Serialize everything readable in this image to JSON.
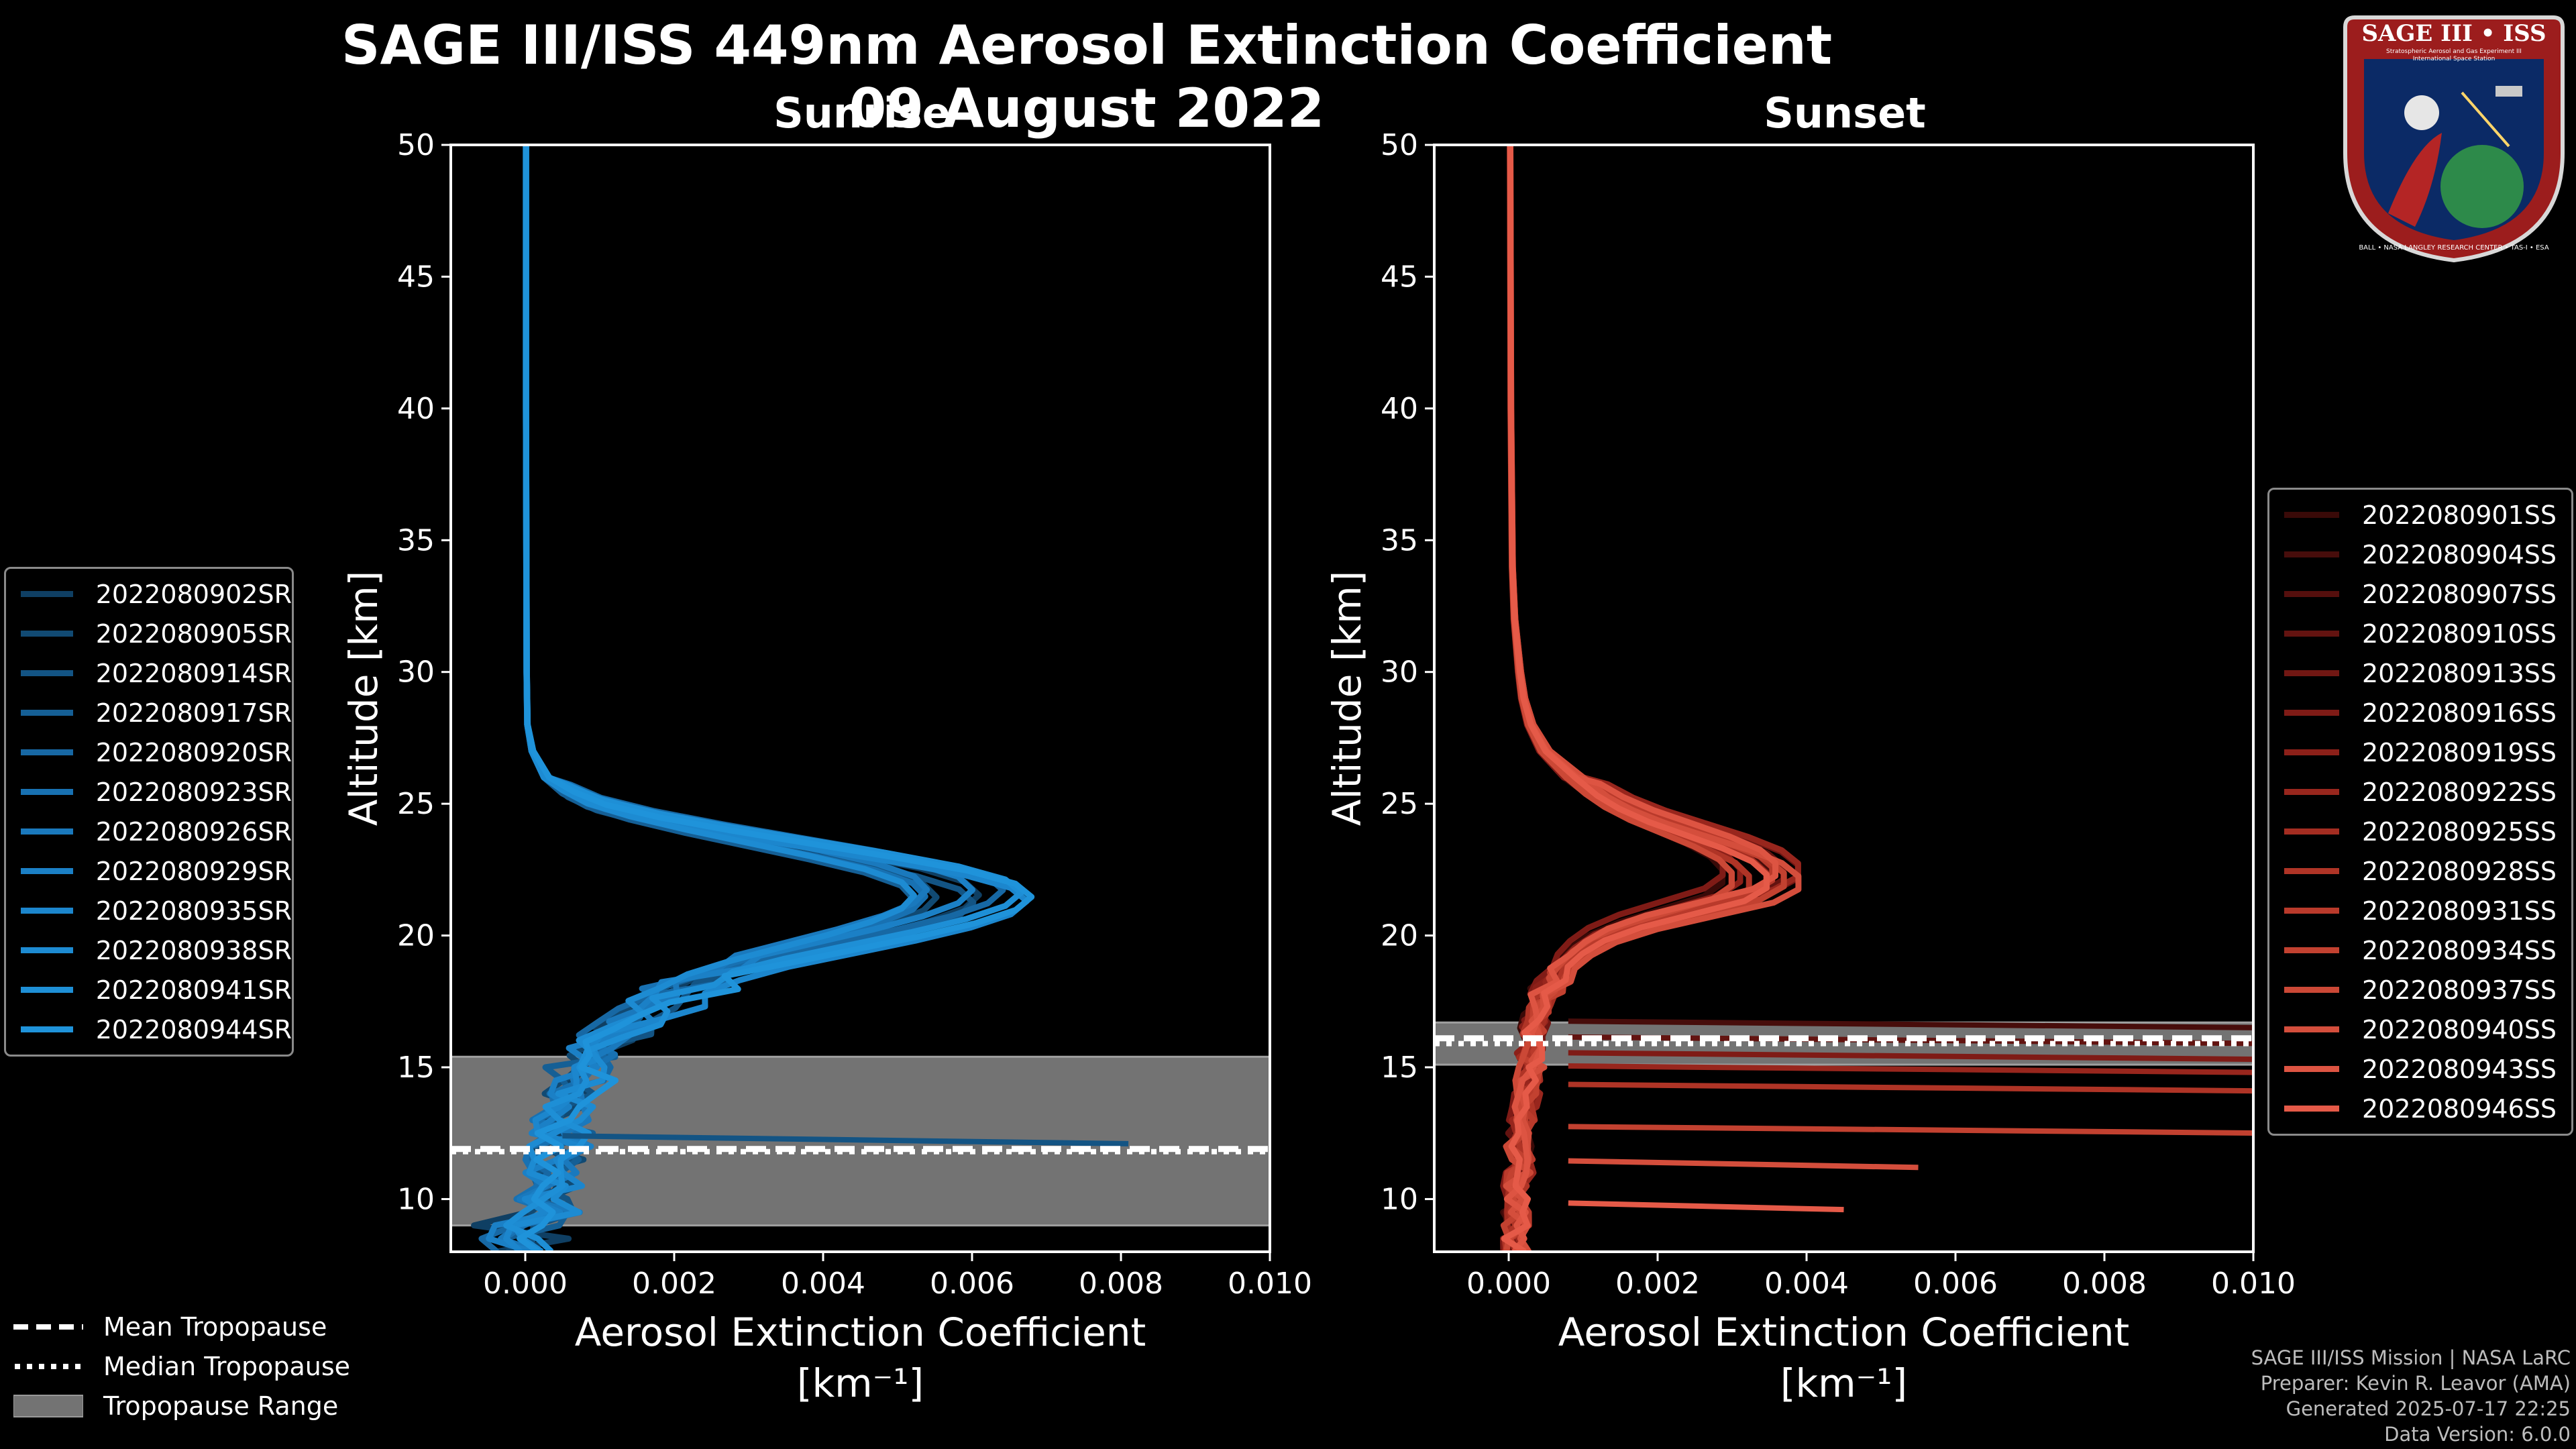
{
  "header": {
    "title_line1": "SAGE III/ISS 449nm Aerosol Extinction Coefficient",
    "title_line2": "09 August 2022"
  },
  "logo": {
    "title": "SAGE III • ISS",
    "sub1": "Stratospheric Aerosol and Gas Experiment III",
    "sub2": "International Space Station",
    "ring": "BALL • NASA LANGLEY RESEARCH CENTER • TAS-I • ESA"
  },
  "colors": {
    "background": "#000000",
    "sunrise": "#1a8fd6",
    "sunset": "#e8584a",
    "tropopause_fill": "#737373"
  },
  "chart_data": [
    {
      "type": "line",
      "panel": "sunrise",
      "title": "Sunrise",
      "xlabel": "Aerosol Extinction Coefficient",
      "xunit": "[km⁻¹]",
      "ylabel": "Altitude [km]",
      "xlim": [
        -0.001,
        0.01
      ],
      "ylim": [
        8,
        50
      ],
      "xticks": [
        "0.000",
        "0.002",
        "0.004",
        "0.006",
        "0.008",
        "0.010"
      ],
      "xtick_values": [
        0,
        0.002,
        0.004,
        0.006,
        0.008,
        0.01
      ],
      "yticks": [
        10,
        15,
        20,
        25,
        30,
        35,
        40,
        45,
        50
      ],
      "tropopause": {
        "mean": 11.9,
        "median": 11.8,
        "range": [
          9.0,
          15.4
        ]
      },
      "series_names": [
        "2022080902SR",
        "2022080905SR",
        "2022080914SR",
        "2022080917SR",
        "2022080920SR",
        "2022080923SR",
        "2022080926SR",
        "2022080929SR",
        "2022080935SR",
        "2022080938SR",
        "2022080941SR",
        "2022080944SR"
      ],
      "series_colors": [
        "#0f3f63",
        "#114a73",
        "#135484",
        "#155f95",
        "#1768a4",
        "#1871b2",
        "#1a79bd",
        "#1b80c6",
        "#1c86cd",
        "#1d8bd2",
        "#1e8fd6",
        "#1f93da"
      ],
      "profile": {
        "altitudes": [
          50,
          40,
          30,
          28,
          27,
          26,
          25.5,
          25,
          24.5,
          24,
          23.5,
          23,
          22.5,
          22,
          21.5,
          21,
          20.5,
          20,
          19.5,
          19,
          18.5,
          18,
          17.5,
          17,
          16.5,
          16,
          15.5,
          15,
          14.5,
          14,
          13.5,
          13,
          12.5,
          12,
          11.5,
          11,
          10.5,
          10,
          9.5,
          9,
          8.5,
          8
        ],
        "values": [
          1e-05,
          1e-05,
          2e-05,
          3e-05,
          0.0001,
          0.0003,
          0.0006,
          0.001,
          0.0017,
          0.0026,
          0.0036,
          0.0046,
          0.0055,
          0.0061,
          0.0063,
          0.0061,
          0.0056,
          0.0049,
          0.0041,
          0.0033,
          0.0027,
          0.0022,
          0.0018,
          0.0015,
          0.0012,
          0.001,
          0.0008,
          0.0007,
          0.0006,
          0.0005,
          0.00045,
          0.0004,
          0.0004,
          0.00035,
          0.0003,
          0.0003,
          0.00025,
          0.0002,
          0.0002,
          0.00015,
          0.0001,
          0.0001
        ],
        "spike": {
          "altitude": 12.1,
          "value": 0.0081
        }
      }
    },
    {
      "type": "line",
      "panel": "sunset",
      "title": "Sunset",
      "xlabel": "Aerosol Extinction Coefficient",
      "xunit": "[km⁻¹]",
      "ylabel": "Altitude [km]",
      "xlim": [
        -0.001,
        0.01
      ],
      "ylim": [
        8,
        50
      ],
      "xticks": [
        "0.000",
        "0.002",
        "0.004",
        "0.006",
        "0.008",
        "0.010"
      ],
      "xtick_values": [
        0,
        0.002,
        0.004,
        0.006,
        0.008,
        0.01
      ],
      "yticks": [
        10,
        15,
        20,
        25,
        30,
        35,
        40,
        45,
        50
      ],
      "tropopause": {
        "mean": 16.1,
        "median": 15.9,
        "range": [
          15.1,
          16.7
        ]
      },
      "series_names": [
        "2022080901SS",
        "2022080904SS",
        "2022080907SS",
        "2022080910SS",
        "2022080913SS",
        "2022080916SS",
        "2022080919SS",
        "2022080922SS",
        "2022080925SS",
        "2022080928SS",
        "2022080931SS",
        "2022080934SS",
        "2022080937SS",
        "2022080940SS",
        "2022080943SS",
        "2022080946SS"
      ],
      "series_colors": [
        "#3a0a08",
        "#470d0b",
        "#550f0d",
        "#631310",
        "#711713",
        "#7f1b16",
        "#8c2019",
        "#98261d",
        "#a42d21",
        "#af3426",
        "#b93a2b",
        "#c24130",
        "#cb4836",
        "#d44e3c",
        "#dd5442",
        "#e55a48"
      ],
      "profile": {
        "altitudes": [
          50,
          40,
          34,
          32,
          30,
          29,
          28,
          27,
          26,
          25.5,
          25,
          24.5,
          24,
          23.5,
          23,
          22.5,
          22,
          21.5,
          21,
          20.5,
          20,
          19.5,
          19,
          18.5,
          18,
          17.5,
          17,
          16.5,
          16,
          15.5,
          15,
          14.5,
          14,
          13.5,
          13,
          12.5,
          12,
          11.5,
          11,
          10.5,
          10,
          9.5,
          9,
          8.5,
          8
        ],
        "values": [
          2e-05,
          3e-05,
          5e-05,
          8e-05,
          0.00015,
          0.0002,
          0.0003,
          0.0005,
          0.0009,
          0.0012,
          0.0015,
          0.0019,
          0.0024,
          0.0029,
          0.0033,
          0.0035,
          0.0035,
          0.0032,
          0.0025,
          0.0018,
          0.0013,
          0.001,
          0.0008,
          0.0006,
          0.0005,
          0.0004,
          0.00035,
          0.0003,
          0.0003,
          0.00025,
          0.00025,
          0.0002,
          0.0002,
          0.00015,
          0.00015,
          0.0001,
          0.0001,
          0.0001,
          0.0001,
          5e-05,
          5e-05,
          5e-05,
          5e-05,
          5e-05,
          5e-05
        ],
        "spikes": [
          {
            "altitude": 16.5,
            "value": 0.0102
          },
          {
            "altitude": 15.9,
            "value": 0.0102
          },
          {
            "altitude": 15.3,
            "value": 0.0102
          },
          {
            "altitude": 14.8,
            "value": 0.0102
          },
          {
            "altitude": 14.1,
            "value": 0.0102
          },
          {
            "altitude": 12.5,
            "value": 0.0102
          },
          {
            "altitude": 11.2,
            "value": 0.0055
          },
          {
            "altitude": 9.6,
            "value": 0.0045
          }
        ]
      }
    }
  ],
  "legend_tropopause": {
    "mean": "Mean Tropopause",
    "median": "Median Tropopause",
    "range": "Tropopause Range"
  },
  "credits": {
    "line1": "SAGE III/ISS Mission | NASA LaRC",
    "line2": "Preparer: Kevin R. Leavor (AMA)",
    "line3": "Generated 2025-07-17 22:25",
    "line4": "Data Version: 6.0.0"
  }
}
